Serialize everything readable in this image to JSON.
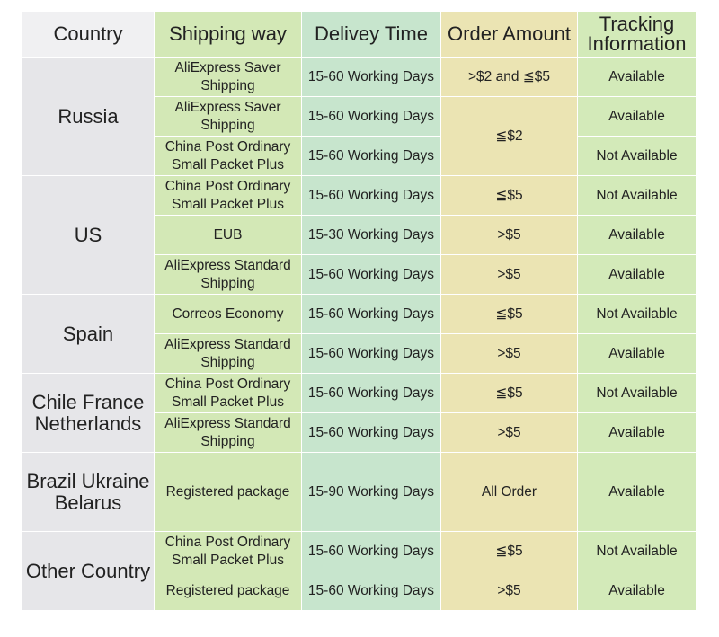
{
  "headers": [
    "Country",
    "Shipping way",
    "Delivey  Time",
    "Order Amount",
    "Tracking Information"
  ],
  "countries": [
    "Russia",
    "US",
    "Spain",
    "Chile France Netherlands",
    "Brazil Ukraine Belarus",
    "Other Country"
  ],
  "rows": [
    {
      "ship": "AliExpress Saver Shipping",
      "time": "15-60 Working Days",
      "amount": ">$2 and ≦$5",
      "track": "Available"
    },
    {
      "ship": "AliExpress Saver Shipping",
      "time": "15-60 Working Days",
      "amount": "≦$2",
      "track": "Available"
    },
    {
      "ship": "China Post Ordinary Small Packet Plus",
      "time": "15-60 Working Days",
      "track": "Not Available"
    },
    {
      "ship": "China Post Ordinary Small Packet Plus",
      "time": "15-60 Working Days",
      "amount": "≦$5",
      "track": "Not Available"
    },
    {
      "ship": "EUB",
      "time": "15-30 Working Days",
      "amount": ">$5",
      "track": "Available"
    },
    {
      "ship": "AliExpress Standard Shipping",
      "time": "15-60 Working Days",
      "amount": ">$5",
      "track": "Available"
    },
    {
      "ship": "Correos Economy",
      "time": "15-60 Working Days",
      "amount": "≦$5",
      "track": "Not Available"
    },
    {
      "ship": "AliExpress Standard Shipping",
      "time": "15-60 Working Days",
      "amount": ">$5",
      "track": "Available"
    },
    {
      "ship": "China Post Ordinary Small Packet Plus",
      "time": "15-60 Working Days",
      "amount": "≦$5",
      "track": "Not Available"
    },
    {
      "ship": "AliExpress Standard Shipping",
      "time": "15-60 Working Days",
      "amount": ">$5",
      "track": "Available"
    },
    {
      "ship": "Registered package",
      "time": "15-90 Working Days",
      "amount": "All Order",
      "track": "Available"
    },
    {
      "ship": "China Post Ordinary Small Packet Plus",
      "time": "15-60 Working Days",
      "amount": "≦$5",
      "track": "Not Available"
    },
    {
      "ship": "Registered package",
      "time": "15-60 Working Days",
      "amount": ">$5",
      "track": "Available"
    }
  ]
}
